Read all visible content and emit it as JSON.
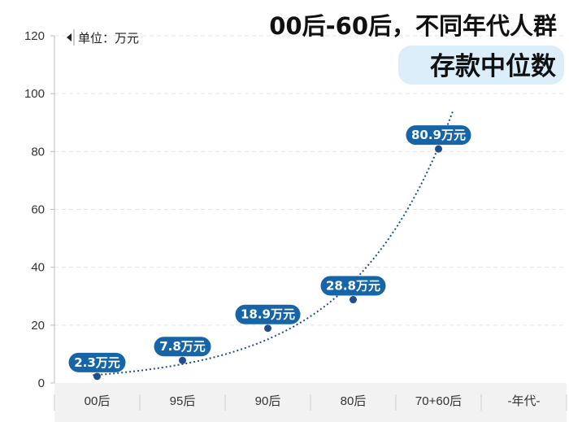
{
  "chart_data": {
    "type": "scatter",
    "title": "00后-60后，不同年代人群",
    "subtitle": "存款中位数",
    "unit_label": "单位：万元",
    "xlabel": "-年代-",
    "ylabel": "",
    "categories": [
      "00后",
      "95后",
      "90后",
      "80后",
      "70+60后"
    ],
    "values": [
      2.3,
      7.8,
      18.9,
      28.8,
      80.9
    ],
    "data_labels": [
      "2.3万元",
      "7.8万元",
      "18.9万元",
      "28.8万元",
      "80.9万元"
    ],
    "ylim": [
      0,
      120
    ],
    "yticks": [
      0,
      20,
      40,
      60,
      80,
      100,
      120
    ],
    "trendline": "exponential",
    "grid": true,
    "legend": "none"
  },
  "colors": {
    "point": "#1f4e8c",
    "label_bg": "#1565a8",
    "trend": "#1f4e8c",
    "grid": "#e6e6e6",
    "subtitle_bg": "#dceefa",
    "axis_band": "#f2f2f2"
  },
  "icons": {
    "unit_marker": "triangle-left-icon"
  }
}
